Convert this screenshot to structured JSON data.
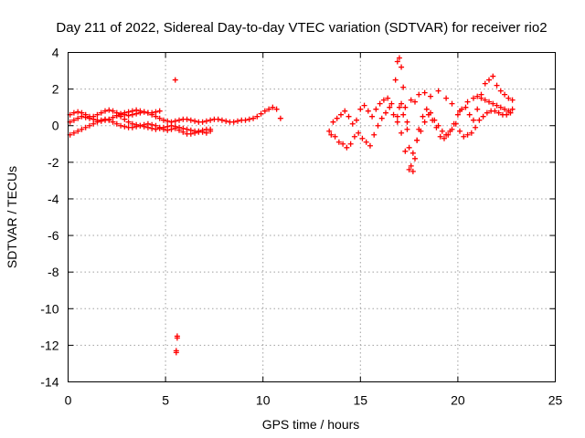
{
  "chart_data": {
    "type": "scatter",
    "title": "Day 211 of 2022, Sidereal Day-to-day VTEC variation (SDTVAR) for receiver rio2",
    "xlabel": "GPS time / hours",
    "ylabel": "SDTVAR / TECUs",
    "xlim": [
      0,
      25
    ],
    "ylim": [
      -14,
      4
    ],
    "xticks": [
      "0",
      "5",
      "10",
      "15",
      "20",
      "25"
    ],
    "yticks": [
      "4",
      "2",
      "0",
      "-2",
      "-4",
      "-6",
      "-8",
      "-10",
      "-12",
      "-14"
    ],
    "grid": true,
    "marker": "plus",
    "series": [
      {
        "name": "SDTVAR",
        "color": "#ff0000",
        "x": [
          0.1,
          0.3,
          0.5,
          0.7,
          0.9,
          1.1,
          1.3,
          1.5,
          1.7,
          1.9,
          2.1,
          2.3,
          2.5,
          2.7,
          2.9,
          3.1,
          3.3,
          3.5,
          3.7,
          3.9,
          4.1,
          4.3,
          4.5,
          4.7,
          4.9,
          5.1,
          5.3,
          5.5,
          5.7,
          5.9,
          6.1,
          6.3,
          6.5,
          6.7,
          6.9,
          7.1,
          7.3,
          7.5,
          7.7,
          7.9,
          8.1,
          8.3,
          8.5,
          8.7,
          8.9,
          9.1,
          9.3,
          9.5,
          9.7,
          9.9,
          10.1,
          10.3,
          10.5,
          10.7,
          10.9,
          0.1,
          0.3,
          0.5,
          0.7,
          0.9,
          1.1,
          1.3,
          1.5,
          1.7,
          1.9,
          2.1,
          2.3,
          2.5,
          2.7,
          2.9,
          3.1,
          3.3,
          3.5,
          3.7,
          3.9,
          4.1,
          4.3,
          4.5,
          4.7,
          4.9,
          5.1,
          5.3,
          5.5,
          5.7,
          5.9,
          6.1,
          6.3,
          6.5,
          6.7,
          6.9,
          7.1,
          7.3,
          0.1,
          0.3,
          0.5,
          0.7,
          0.9,
          1.1,
          1.3,
          1.5,
          1.7,
          1.9,
          2.1,
          2.3,
          2.5,
          2.7,
          2.9,
          3.1,
          3.3,
          3.5,
          3.7,
          3.9,
          4.1,
          4.3,
          4.5,
          4.7,
          4.9,
          5.1,
          5.3,
          5.5,
          5.7,
          5.9,
          6.1,
          6.3,
          6.5,
          6.7,
          6.9,
          7.1,
          7.3,
          2.5,
          2.7,
          2.9,
          3.1,
          3.3,
          3.5,
          3.7,
          3.9,
          4.1,
          4.3,
          4.5,
          4.7,
          5.5,
          5.6,
          5.6,
          5.55,
          5.55,
          13.4,
          13.6,
          13.8,
          14.0,
          14.2,
          14.4,
          14.6,
          14.8,
          15.0,
          15.2,
          15.4,
          15.6,
          15.8,
          16.0,
          16.2,
          16.4,
          16.6,
          16.8,
          16.9,
          17.0,
          17.1,
          17.2,
          17.3,
          17.4,
          17.5,
          17.6,
          17.7,
          17.8,
          17.9,
          18.0,
          18.2,
          18.4,
          18.6,
          18.8,
          19.0,
          19.2,
          19.4,
          19.6,
          19.8,
          20.0,
          20.2,
          20.4,
          20.6,
          20.8,
          21.0,
          21.2,
          21.4,
          21.6,
          21.8,
          22.0,
          22.2,
          22.4,
          22.6,
          22.8,
          13.5,
          13.7,
          13.9,
          14.1,
          14.3,
          14.5,
          14.7,
          14.9,
          15.1,
          15.3,
          15.5,
          15.7,
          15.9,
          16.1,
          16.3,
          16.5,
          16.7,
          16.9,
          17.1,
          17.3,
          17.5,
          17.7,
          17.9,
          18.1,
          18.3,
          18.5,
          18.7,
          18.9,
          19.1,
          19.3,
          19.5,
          19.7,
          19.9,
          20.1,
          20.3,
          20.5,
          20.7,
          20.9,
          21.1,
          21.3,
          21.5,
          21.7,
          21.9,
          22.1,
          22.3,
          22.5,
          22.7,
          16.9,
          17.0,
          17.1,
          17.2,
          17.4,
          17.6,
          17.8,
          18.0,
          18.3,
          18.6,
          19.0,
          19.4,
          19.7,
          20.1,
          20.5,
          20.8,
          21.0,
          21.2,
          21.4,
          21.6,
          21.8,
          22.0,
          22.2,
          22.4,
          22.6,
          22.8
        ],
        "y": [
          0.6,
          0.7,
          0.75,
          0.7,
          0.6,
          0.5,
          0.5,
          0.6,
          0.7,
          0.8,
          0.85,
          0.8,
          0.7,
          0.65,
          0.6,
          0.55,
          0.6,
          0.65,
          0.7,
          0.75,
          0.7,
          0.6,
          0.5,
          0.4,
          0.3,
          0.25,
          0.2,
          0.25,
          0.3,
          0.35,
          0.35,
          0.3,
          0.25,
          0.2,
          0.2,
          0.25,
          0.3,
          0.35,
          0.35,
          0.3,
          0.25,
          0.2,
          0.2,
          0.25,
          0.3,
          0.3,
          0.35,
          0.4,
          0.5,
          0.65,
          0.8,
          0.9,
          1.0,
          0.9,
          0.4,
          0.2,
          0.3,
          0.4,
          0.5,
          0.45,
          0.4,
          0.35,
          0.3,
          0.25,
          0.3,
          0.35,
          0.45,
          0.55,
          0.5,
          0.35,
          0.2,
          0.1,
          0.05,
          0.0,
          -0.05,
          -0.1,
          -0.15,
          -0.2,
          -0.15,
          -0.1,
          -0.05,
          0.0,
          -0.05,
          -0.1,
          -0.15,
          -0.2,
          -0.25,
          -0.3,
          -0.3,
          -0.25,
          -0.2,
          -0.2,
          -0.5,
          -0.4,
          -0.3,
          -0.2,
          -0.1,
          0.0,
          0.1,
          0.2,
          0.3,
          0.35,
          0.3,
          0.2,
          0.1,
          0.0,
          -0.05,
          -0.1,
          -0.1,
          -0.05,
          0.0,
          0.05,
          0.1,
          0.05,
          0.0,
          -0.1,
          -0.2,
          -0.25,
          -0.2,
          -0.15,
          -0.25,
          -0.35,
          -0.45,
          -0.45,
          -0.4,
          -0.35,
          -0.35,
          -0.4,
          -0.3,
          0.55,
          0.6,
          0.7,
          0.75,
          0.8,
          0.85,
          0.8,
          0.75,
          0.7,
          0.7,
          0.75,
          0.8,
          2.5,
          -11.5,
          -11.6,
          -12.3,
          -12.4,
          -0.3,
          0.2,
          0.4,
          0.6,
          0.8,
          0.5,
          0.1,
          0.3,
          0.9,
          1.1,
          0.8,
          0.5,
          0.9,
          1.2,
          1.4,
          1.5,
          1.2,
          2.5,
          3.5,
          3.7,
          3.2,
          2.1,
          1.0,
          -0.2,
          -1.2,
          -2.2,
          -2.5,
          -1.8,
          -0.8,
          -0.2,
          0.5,
          0.9,
          0.7,
          0.3,
          0.0,
          -0.3,
          -0.5,
          -0.3,
          0.1,
          0.6,
          0.9,
          1.0,
          0.6,
          0.3,
          0.9,
          1.5,
          2.3,
          2.5,
          2.7,
          2.2,
          1.9,
          1.7,
          1.5,
          1.4,
          -0.5,
          -0.6,
          -0.9,
          -1.0,
          -1.2,
          -1.0,
          -0.6,
          -0.4,
          -0.7,
          -0.9,
          -1.1,
          -0.5,
          0.0,
          0.4,
          0.7,
          1.0,
          0.6,
          0.2,
          -0.4,
          -1.4,
          -2.4,
          -1.5,
          -0.8,
          -0.3,
          0.2,
          0.6,
          0.3,
          -0.1,
          -0.6,
          -0.7,
          -0.5,
          -0.2,
          0.1,
          -0.3,
          -0.6,
          -0.5,
          -0.4,
          -0.1,
          0.3,
          0.5,
          0.7,
          0.8,
          0.8,
          0.7,
          0.6,
          0.6,
          0.7,
          0.5,
          1.0,
          1.2,
          0.6,
          0.2,
          1.4,
          1.3,
          1.7,
          1.8,
          1.6,
          1.9,
          1.5,
          1.2,
          0.8,
          1.3,
          1.5,
          1.6,
          1.7,
          1.4,
          1.3,
          1.2,
          1.1,
          1.0,
          0.9,
          0.8,
          0.9
        ]
      }
    ]
  }
}
